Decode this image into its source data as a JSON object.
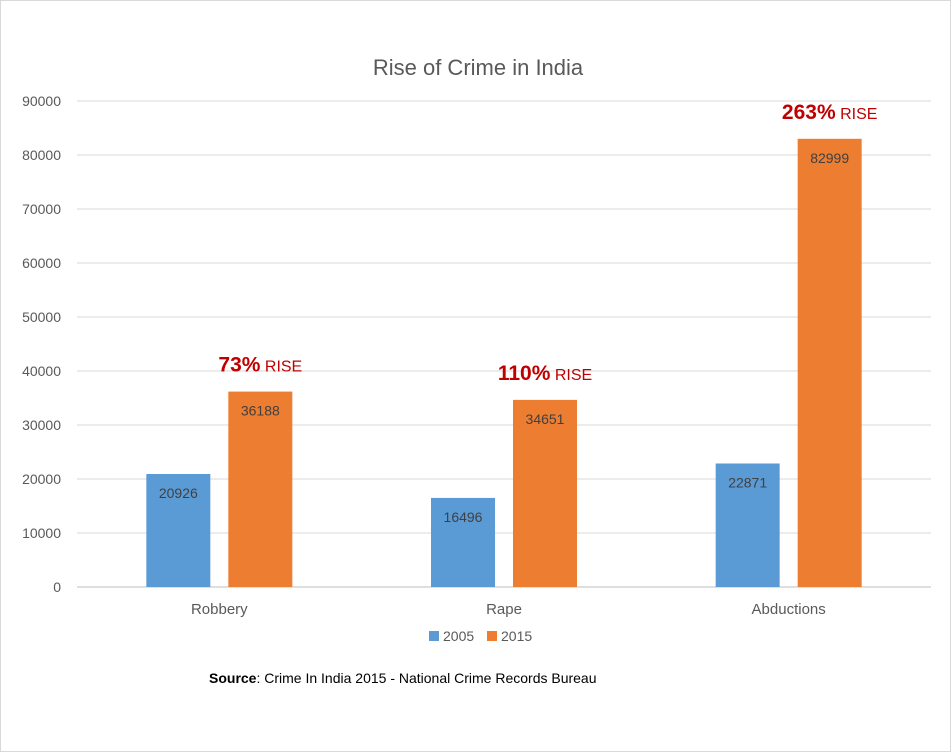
{
  "chart_data": {
    "type": "bar",
    "title": "Rise of Crime in India",
    "categories": [
      "Robbery",
      "Rape",
      "Abductions"
    ],
    "series": [
      {
        "name": "2005",
        "values": [
          20926,
          16496,
          22871
        ],
        "color": "#5b9bd5"
      },
      {
        "name": "2015",
        "values": [
          36188,
          34651,
          82999
        ],
        "color": "#ed7d31"
      }
    ],
    "ylim": [
      0,
      90000
    ],
    "yticks": [
      0,
      10000,
      20000,
      30000,
      40000,
      50000,
      60000,
      70000,
      80000,
      90000
    ],
    "grid": true,
    "legend": "bottom",
    "annotations": [
      {
        "category": "Robbery",
        "percent": "73%",
        "word": "RISE"
      },
      {
        "category": "Rape",
        "percent": "110%",
        "word": "RISE"
      },
      {
        "category": "Abductions",
        "percent": "263%",
        "word": "RISE"
      }
    ]
  },
  "source": {
    "label": "Source",
    "text": ": Crime In India 2015 - National Crime Records Bureau"
  }
}
